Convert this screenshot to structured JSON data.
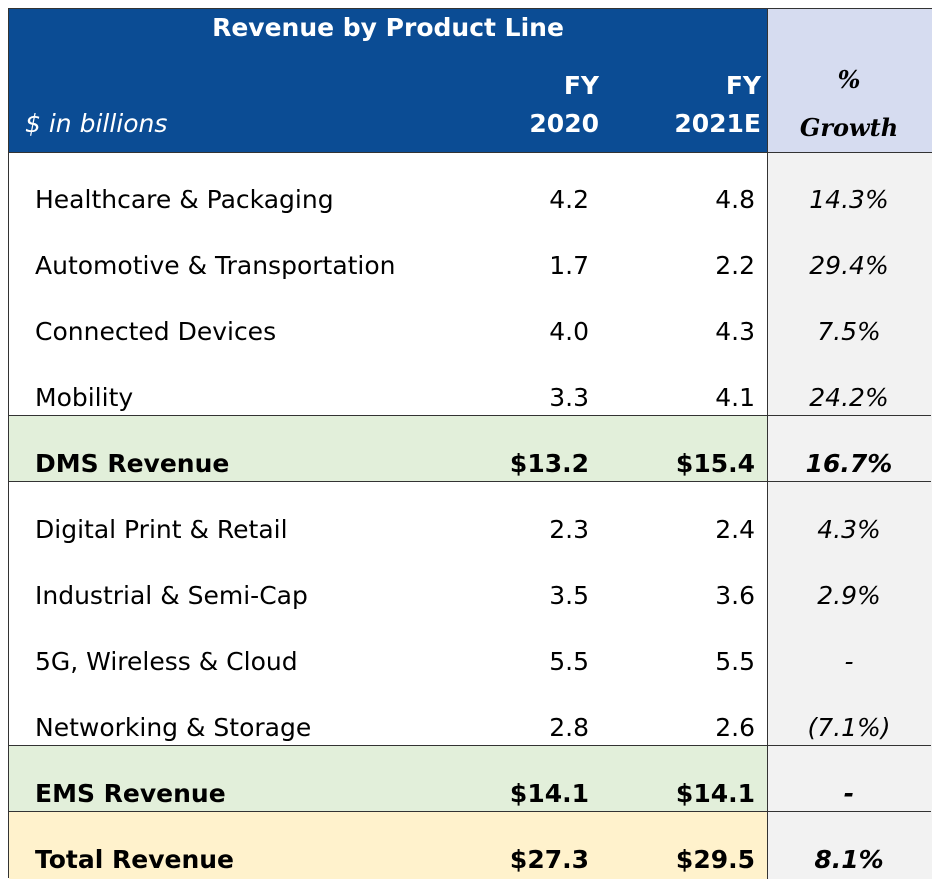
{
  "header": {
    "title": "Revenue by Product Line",
    "units": "$ in billions",
    "col_2020_line1": "FY",
    "col_2020_line2": "2020",
    "col_2021_line1": "FY",
    "col_2021_line2": "2021E",
    "growth_line1": "%",
    "growth_line2": "Growth"
  },
  "colors": {
    "header_blue": "#0b4c94",
    "growth_header": "#d6dcf0",
    "growth_column": "#f2f2f2",
    "subtotal_green": "#e2efda",
    "total_yellow": "#fff2cc"
  },
  "rows": [
    {
      "label": "Healthcare & Packaging",
      "fy2020": "4.2",
      "fy2021e": "4.8",
      "growth": "14.3%"
    },
    {
      "label": "Automotive & Transportation",
      "fy2020": "1.7",
      "fy2021e": "2.2",
      "growth": "29.4%"
    },
    {
      "label": "Connected Devices",
      "fy2020": "4.0",
      "fy2021e": "4.3",
      "growth": "7.5%"
    },
    {
      "label": "Mobility",
      "fy2020": "3.3",
      "fy2021e": "4.1",
      "growth": "24.2%"
    },
    {
      "label": "DMS Revenue",
      "fy2020": "$13.2",
      "fy2021e": "$15.4",
      "growth": "16.7%"
    },
    {
      "label": "Digital Print & Retail",
      "fy2020": "2.3",
      "fy2021e": "2.4",
      "growth": "4.3%"
    },
    {
      "label": "Industrial & Semi-Cap",
      "fy2020": "3.5",
      "fy2021e": "3.6",
      "growth": "2.9%"
    },
    {
      "label": "5G, Wireless & Cloud",
      "fy2020": "5.5",
      "fy2021e": "5.5",
      "growth": "-"
    },
    {
      "label": "Networking & Storage",
      "fy2020": "2.8",
      "fy2021e": "2.6",
      "growth": "(7.1%)"
    },
    {
      "label": "EMS Revenue",
      "fy2020": "$14.1",
      "fy2021e": "$14.1",
      "growth": "-"
    },
    {
      "label": "Total Revenue",
      "fy2020": "$27.3",
      "fy2021e": "$29.5",
      "growth": "8.1%"
    }
  ]
}
